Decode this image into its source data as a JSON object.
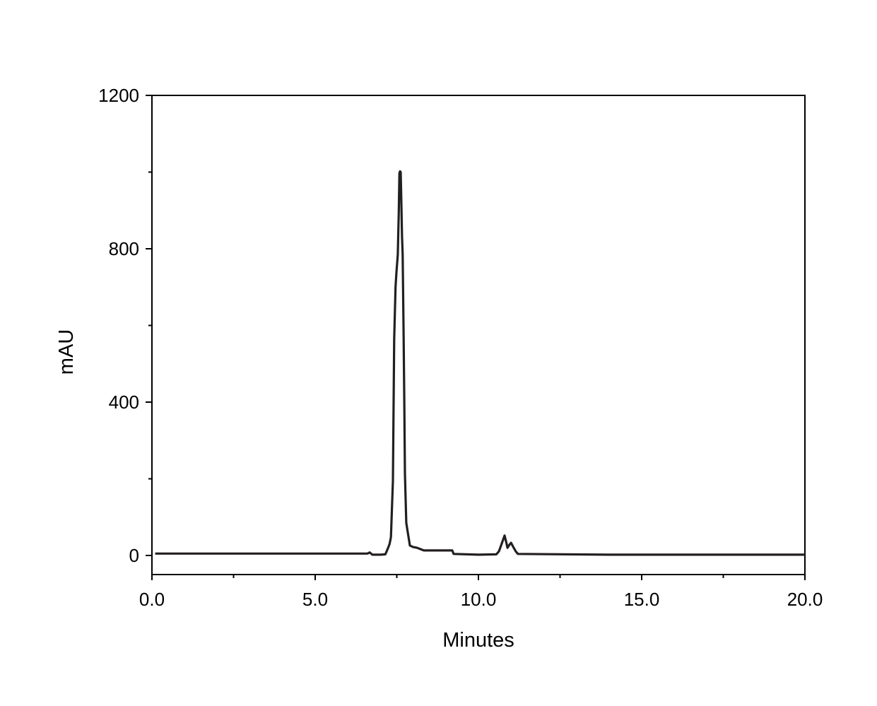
{
  "chart_data": {
    "type": "line",
    "title": "",
    "xlabel": "Minutes",
    "ylabel": "mAU",
    "xlim": [
      0,
      20
    ],
    "ylim": [
      -50,
      1200
    ],
    "xticks": [
      0,
      5,
      10,
      15,
      20
    ],
    "xtick_labels": [
      "0.0",
      "5.0",
      "10.0",
      "15.0",
      "20.0"
    ],
    "yticks": [
      0,
      400,
      800,
      1200
    ],
    "ytick_labels": [
      "0",
      "400",
      "800",
      "1200"
    ],
    "grid": false,
    "line_color": "#231f20",
    "series": [
      {
        "x": [
          0.1,
          3.5,
          6.6,
          6.67,
          6.75,
          7.0,
          7.15,
          7.21,
          7.28,
          7.32,
          7.38,
          7.42,
          7.46,
          7.49,
          7.53,
          7.56,
          7.58,
          7.6,
          7.62,
          7.64,
          7.66,
          7.68,
          7.71,
          7.73,
          7.75,
          7.79,
          7.86,
          7.9,
          8.0,
          8.12,
          8.33,
          8.6,
          9.2,
          9.24,
          10.0,
          10.55,
          10.63,
          10.71,
          10.8,
          10.85,
          10.89,
          10.95,
          11.0,
          11.08,
          11.15,
          11.21,
          14.0,
          17.0,
          20.0
        ],
        "y": [
          5,
          5,
          5,
          8,
          2,
          2,
          3,
          15,
          30,
          48,
          195,
          564,
          700,
          739,
          785,
          896,
          997,
          1002,
          1000,
          914,
          830,
          785,
          564,
          400,
          214,
          85,
          48,
          26,
          22,
          20,
          13,
          13,
          13,
          4,
          2,
          3,
          11,
          30,
          52,
          35,
          20,
          28,
          33,
          20,
          10,
          4,
          2,
          2,
          2
        ]
      }
    ]
  }
}
